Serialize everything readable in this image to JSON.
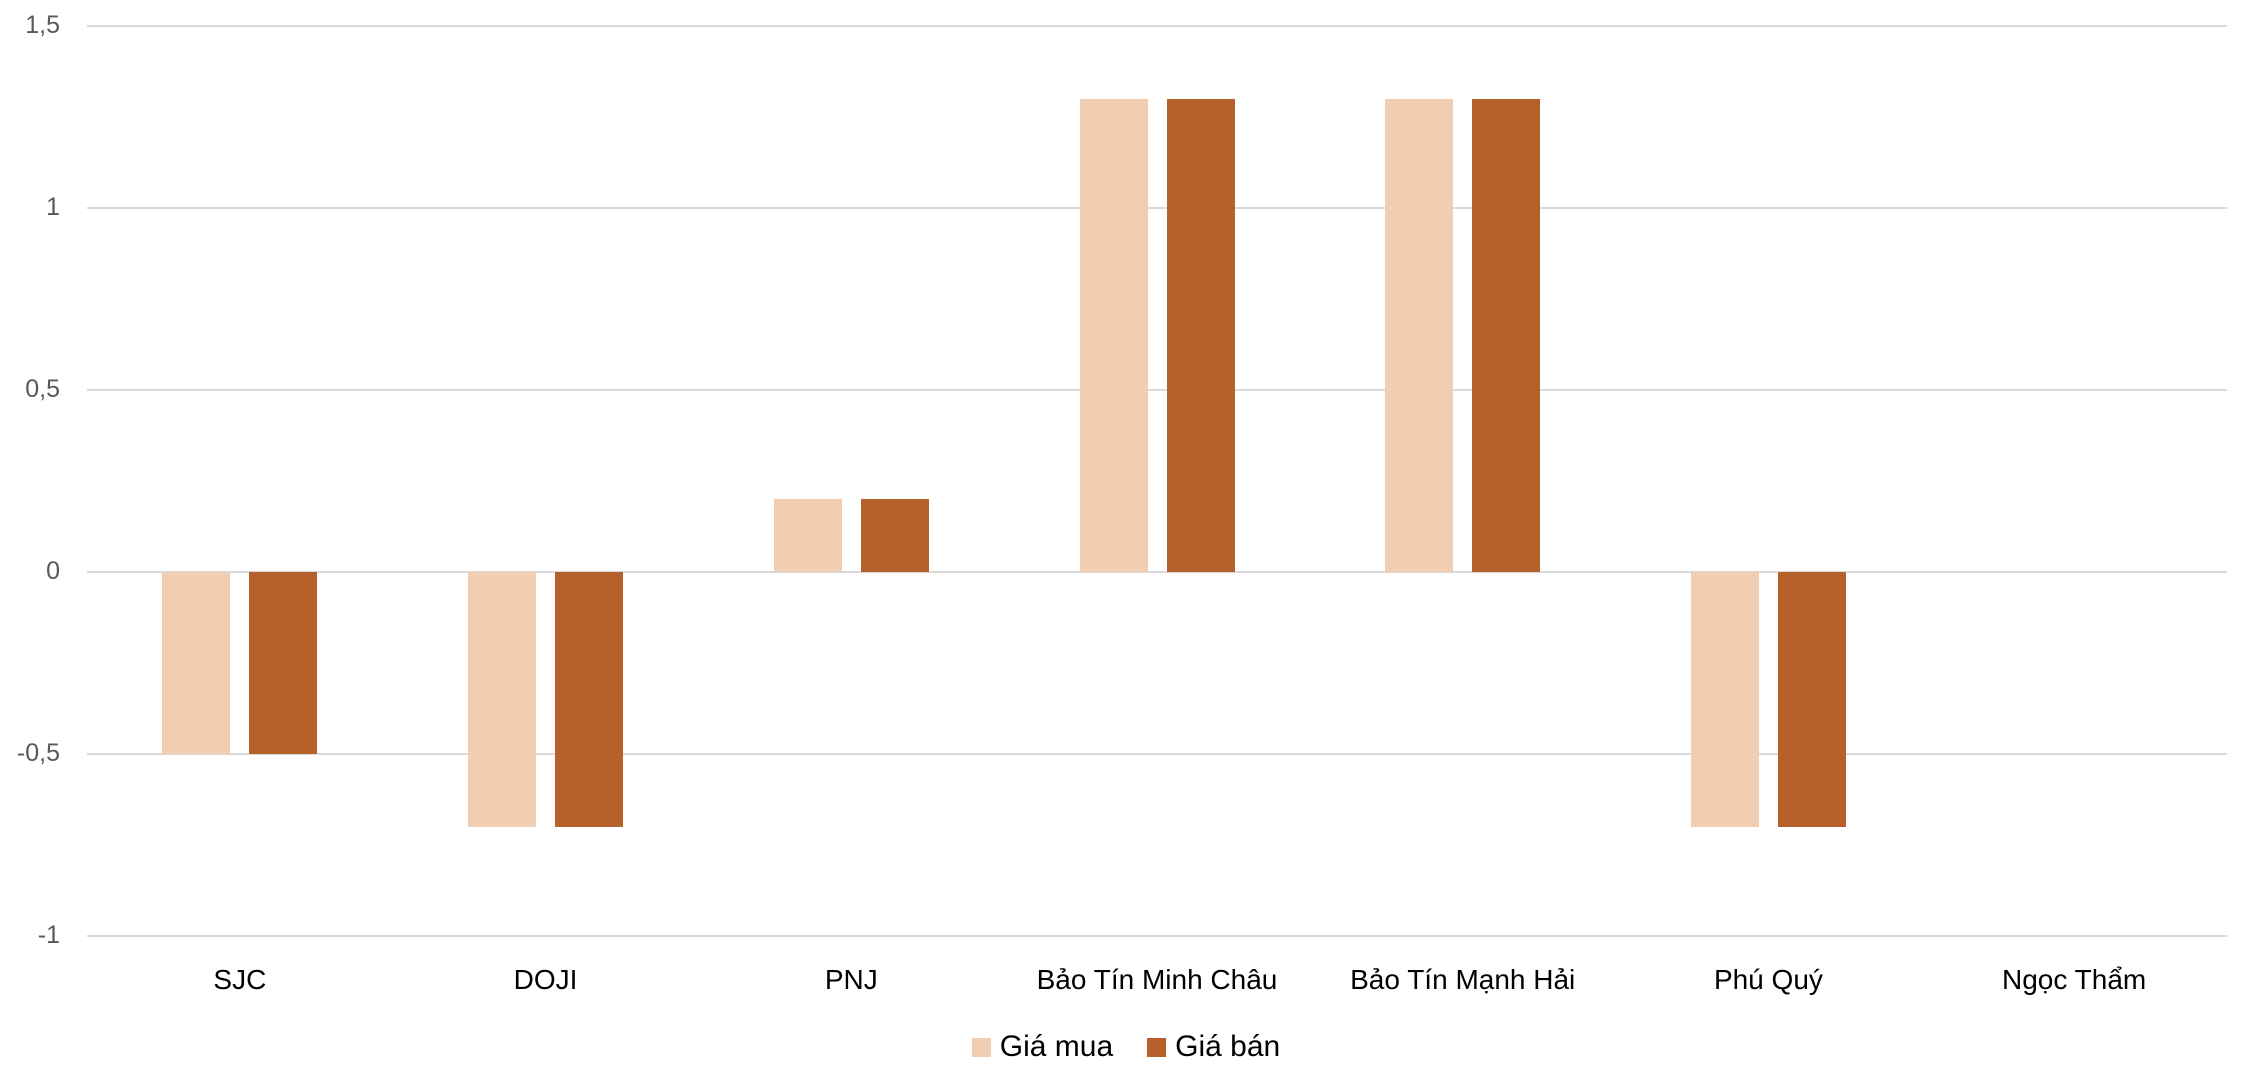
{
  "chart_data": {
    "type": "bar",
    "title": "",
    "xlabel": "",
    "ylabel": "",
    "categories": [
      "SJC",
      "DOJI",
      "PNJ",
      "Bảo Tín Minh Châu",
      "Bảo Tín Mạnh Hải",
      "Phú Quý",
      "Ngọc Thẩm"
    ],
    "series": [
      {
        "name": "Giá mua",
        "color": "#F1CEB1",
        "values": [
          -0.5,
          -0.7,
          0.2,
          1.3,
          1.3,
          -0.7,
          0
        ]
      },
      {
        "name": "Giá bán",
        "color": "#B6602B",
        "values": [
          -0.5,
          -0.7,
          0.2,
          1.3,
          1.3,
          -0.7,
          0
        ]
      }
    ],
    "ylim": [
      -1,
      1.5
    ],
    "yticks": [
      1.5,
      1,
      0.5,
      0,
      -0.5,
      -1
    ],
    "ytick_labels": [
      "1,5",
      "1",
      "0,5",
      "0",
      "-0,5",
      "-1"
    ],
    "grid": true,
    "legend_position": "bottom"
  },
  "legend": {
    "items": [
      {
        "label": "Giá mua",
        "color": "#F1CEB1"
      },
      {
        "label": "Giá bán",
        "color": "#B6602B"
      }
    ]
  }
}
